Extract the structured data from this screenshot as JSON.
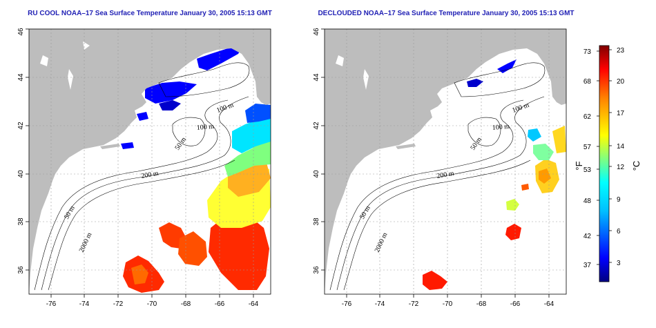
{
  "chart_data": [
    {
      "type": "heatmap",
      "title": "RU COOL NOAA–17 Sea Surface Temperature January 30, 2005 15:13 GMT",
      "x_ticks": [
        -76,
        -74,
        -72,
        -70,
        -68,
        -66,
        -64
      ],
      "y_ticks": [
        36,
        38,
        40,
        42,
        44,
        46
      ],
      "xlim": [
        -77.2,
        -62.9
      ],
      "ylim": [
        35,
        46
      ],
      "grid": true,
      "contour_labels": [
        "100 m",
        "100 m",
        "50 m",
        "200 m",
        "50 m",
        "2000 m"
      ]
    },
    {
      "type": "heatmap",
      "title": "DECLOUDED NOAA–17 Sea Surface Temperature January 30, 2005 15:13 GMT",
      "x_ticks": [
        -76,
        -74,
        -72,
        -70,
        -68,
        -66,
        -64
      ],
      "y_ticks": [
        36,
        38,
        40,
        42,
        44,
        46
      ],
      "xlim": [
        -77.2,
        -62.9
      ],
      "ylim": [
        35,
        46
      ],
      "grid": true,
      "contour_labels": [
        "100 m",
        "100 m",
        "50 m",
        "200 m",
        "50 m",
        "2000 m"
      ]
    }
  ],
  "colorbar": {
    "fahrenheit_ticks": [
      "73",
      "68",
      "62",
      "57",
      "53",
      "48",
      "42",
      "37"
    ],
    "celsius_ticks": [
      "23",
      "20",
      "17",
      "14",
      "12",
      "9",
      "6",
      "3"
    ],
    "unit_f": "°F",
    "unit_c": "°C"
  },
  "colors": {
    "land": "#bdbdbd",
    "title": "#1f1fb4",
    "scale": [
      "#000080",
      "#0000ff",
      "#00bfff",
      "#00ffff",
      "#80ff80",
      "#ffff00",
      "#ff8000",
      "#ff0000",
      "#800000"
    ]
  }
}
